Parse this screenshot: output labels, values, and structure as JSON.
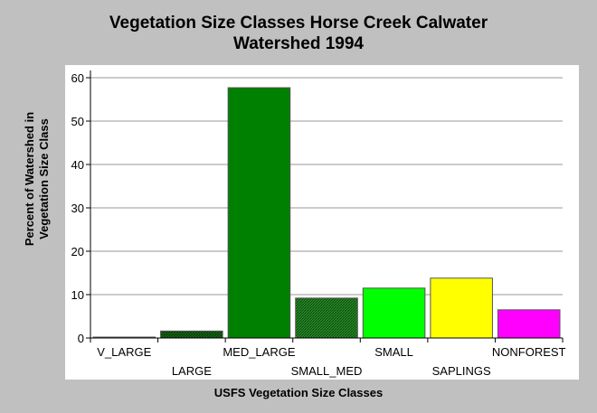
{
  "chart_data": {
    "type": "bar",
    "title_lines": [
      "Vegetation Size Classes Horse Creek Calwater",
      "Watershed 1994"
    ],
    "xlabel": "USFS Vegetation Size Classes",
    "ylabel_lines": [
      "Percent of Watershed in",
      "Vegetation Size Class"
    ],
    "categories": [
      "V_LARGE",
      "LARGE",
      "MED_LARGE",
      "SMALL_MED",
      "SMALL",
      "SAPLINGS",
      "NONFOREST"
    ],
    "values": [
      0.2,
      1.6,
      57.7,
      9.2,
      11.5,
      13.8,
      6.5
    ],
    "colors": [
      "#800080",
      "#004400",
      "#008000",
      "#003300",
      "#00ff00",
      "#ffff00",
      "#ff00ff"
    ],
    "patterns": [
      "solid",
      "hatch",
      "solid",
      "hatch",
      "solid",
      "solid",
      "solid"
    ],
    "ylim": [
      0,
      60
    ],
    "yticks": [
      0,
      10,
      20,
      30,
      40,
      50,
      60
    ],
    "grid": true
  }
}
